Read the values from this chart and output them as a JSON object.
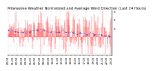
{
  "title": "Milwaukee Weather Normalized and Average Wind Direction (Last 24 Hours)",
  "n_points": 288,
  "y_min": -4,
  "y_max": 6,
  "y_ticks": [
    2,
    4,
    6
  ],
  "bar_color": "#ff0000",
  "avg_color": "#0000bb",
  "bg_color": "#ffffff",
  "grid_color": "#aaaaaa",
  "title_fontsize": 3.8,
  "ylabel_fontsize": 3.2,
  "xlabel_fontsize": 2.8,
  "seed": 12345
}
